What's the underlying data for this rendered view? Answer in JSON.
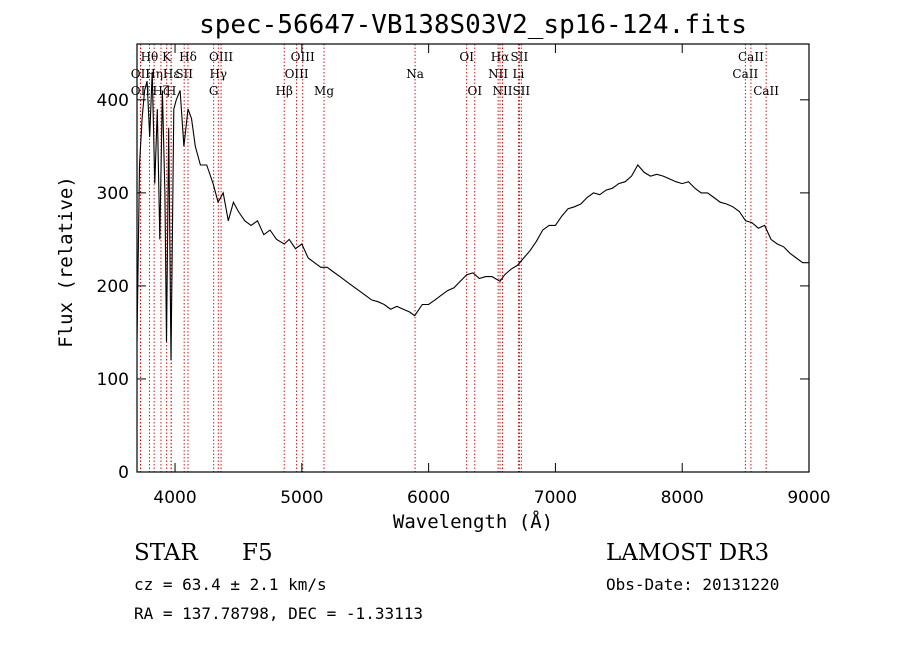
{
  "chart_data": {
    "type": "line",
    "title": "spec-56647-VB138S03V2_sp16-124.fits",
    "xlabel": "Wavelength (Å)",
    "ylabel": "Flux (relative)",
    "xlim": [
      3700,
      9000
    ],
    "ylim": [
      0,
      460
    ],
    "x_ticks": [
      4000,
      5000,
      6000,
      7000,
      8000,
      9000
    ],
    "y_ticks": [
      0,
      100,
      200,
      300,
      400
    ],
    "series": [
      {
        "name": "flux",
        "x": [
          3700,
          3720,
          3740,
          3760,
          3780,
          3800,
          3820,
          3840,
          3860,
          3880,
          3900,
          3920,
          3933,
          3950,
          3968,
          3990,
          4010,
          4040,
          4070,
          4102,
          4130,
          4160,
          4200,
          4250,
          4300,
          4340,
          4380,
          4420,
          4460,
          4500,
          4550,
          4600,
          4650,
          4700,
          4750,
          4800,
          4861,
          4900,
          4950,
          5000,
          5050,
          5100,
          5150,
          5200,
          5250,
          5300,
          5350,
          5400,
          5450,
          5500,
          5550,
          5600,
          5650,
          5700,
          5750,
          5800,
          5850,
          5890,
          5950,
          6000,
          6050,
          6100,
          6150,
          6200,
          6250,
          6300,
          6350,
          6400,
          6450,
          6500,
          6563,
          6600,
          6650,
          6700,
          6750,
          6800,
          6850,
          6900,
          6950,
          7000,
          7050,
          7100,
          7150,
          7200,
          7250,
          7300,
          7350,
          7400,
          7450,
          7500,
          7550,
          7600,
          7650,
          7700,
          7750,
          7800,
          7850,
          7900,
          7950,
          8000,
          8050,
          8100,
          8150,
          8200,
          8250,
          8300,
          8350,
          8400,
          8450,
          8500,
          8550,
          8600,
          8650,
          8700,
          8750,
          8800,
          8850,
          8900,
          8950,
          9000
        ],
        "values": [
          140,
          330,
          380,
          410,
          420,
          360,
          430,
          310,
          390,
          250,
          410,
          300,
          140,
          370,
          120,
          390,
          400,
          410,
          350,
          390,
          380,
          350,
          330,
          330,
          310,
          290,
          300,
          270,
          290,
          280,
          270,
          265,
          270,
          255,
          260,
          250,
          245,
          250,
          240,
          245,
          230,
          225,
          220,
          220,
          215,
          210,
          205,
          200,
          195,
          190,
          185,
          183,
          180,
          175,
          178,
          175,
          172,
          168,
          180,
          180,
          185,
          190,
          195,
          198,
          205,
          212,
          214,
          208,
          210,
          210,
          205,
          212,
          218,
          222,
          230,
          238,
          248,
          260,
          265,
          265,
          275,
          283,
          285,
          288,
          295,
          300,
          298,
          303,
          305,
          310,
          312,
          318,
          330,
          322,
          318,
          320,
          318,
          315,
          312,
          310,
          312,
          305,
          300,
          300,
          295,
          290,
          288,
          285,
          280,
          270,
          268,
          262,
          265,
          250,
          245,
          242,
          235,
          230,
          225,
          225
        ]
      }
    ],
    "line_markers": [
      {
        "label": "Hθ",
        "x": 3798,
        "row": 1,
        "color": "#cc0000"
      },
      {
        "label": "OII",
        "x": 3727,
        "row": 2,
        "color": "#cc0000"
      },
      {
        "label": "Hη",
        "x": 3835,
        "row": 2,
        "color": "#cc0000"
      },
      {
        "label": "OII",
        "x": 3727,
        "row": 3,
        "color": "#cc0000"
      },
      {
        "label": "Hζ",
        "x": 3889,
        "row": 3,
        "color": "#cc0000"
      },
      {
        "label": "K",
        "x": 3934,
        "row": 1,
        "color": "#cc0000"
      },
      {
        "label": "H",
        "x": 3969,
        "row": 3,
        "color": "#cc0000"
      },
      {
        "label": "Hε",
        "x": 3970,
        "row": 2,
        "color": "#cc0000"
      },
      {
        "label": "Hδ",
        "x": 4102,
        "row": 1,
        "color": "#cc0000"
      },
      {
        "label": "SII",
        "x": 4072,
        "row": 2,
        "color": "#cc0000"
      },
      {
        "label": "OIII",
        "x": 4363,
        "row": 1,
        "color": "#cc0000"
      },
      {
        "label": "Hγ",
        "x": 4341,
        "row": 2,
        "color": "#cc0000"
      },
      {
        "label": "G",
        "x": 4305,
        "row": 3,
        "color": "#cc0000"
      },
      {
        "label": "Hβ",
        "x": 4861,
        "row": 3,
        "color": "#cc0000"
      },
      {
        "label": "OIII",
        "x": 5007,
        "row": 1,
        "color": "#cc0000"
      },
      {
        "label": "OIII",
        "x": 4959,
        "row": 2,
        "color": "#cc0000"
      },
      {
        "label": "Mg",
        "x": 5175,
        "row": 3,
        "color": "#cc0000"
      },
      {
        "label": "Na",
        "x": 5893,
        "row": 2,
        "color": "#cc0000"
      },
      {
        "label": "OI",
        "x": 6300,
        "row": 1,
        "color": "#cc0000"
      },
      {
        "label": "OI",
        "x": 6364,
        "row": 3,
        "color": "#cc0000"
      },
      {
        "label": "Hα",
        "x": 6563,
        "row": 1,
        "color": "#cc0000"
      },
      {
        "label": "NII",
        "x": 6548,
        "row": 2,
        "color": "#cc0000"
      },
      {
        "label": "NII",
        "x": 6583,
        "row": 3,
        "color": "#cc0000"
      },
      {
        "label": "SII",
        "x": 6716,
        "row": 1,
        "color": "#cc0000"
      },
      {
        "label": "Li",
        "x": 6708,
        "row": 2,
        "color": "#cc0000"
      },
      {
        "label": "SII",
        "x": 6731,
        "row": 3,
        "color": "#cc0000"
      },
      {
        "label": "CaII",
        "x": 8542,
        "row": 1,
        "color": "#cc0000"
      },
      {
        "label": "CaII",
        "x": 8498,
        "row": 2,
        "color": "#cc0000"
      },
      {
        "label": "CaII",
        "x": 8662,
        "row": 3,
        "color": "#cc0000"
      }
    ]
  },
  "info": {
    "object_type": "STAR",
    "subclass": "F5",
    "survey": "LAMOST DR3",
    "cz": "cz = 63.4 ± 2.1 km/s",
    "obs_date": "Obs-Date: 20131220",
    "coords": "RA = 137.78798, DEC =  -1.33113"
  }
}
